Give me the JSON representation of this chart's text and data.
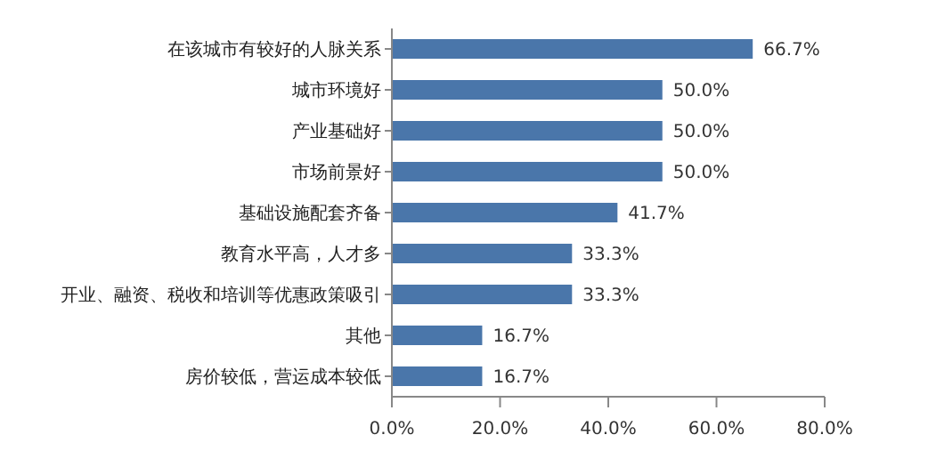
{
  "chart_data": {
    "type": "bar",
    "orientation": "horizontal",
    "categories": [
      "在该城市有较好的人脉关系",
      "城市环境好",
      "产业基础好",
      "市场前景好",
      "基础设施配套齐备",
      "教育水平高，人才多",
      "开业、融资、税收和培训等优惠政策吸引",
      "其他",
      "房价较低，营运成本较低"
    ],
    "values": [
      66.7,
      50.0,
      50.0,
      50.0,
      41.7,
      33.3,
      33.3,
      16.7,
      16.7
    ],
    "value_labels": [
      "66.7%",
      "50.0%",
      "50.0%",
      "50.0%",
      "41.7%",
      "33.3%",
      "33.3%",
      "16.7%",
      "16.7%"
    ],
    "color": "#4a76aa",
    "xlim": [
      0,
      80
    ],
    "xticks": [
      {
        "value": 0,
        "label": "0.0%"
      },
      {
        "value": 20,
        "label": "20.0%"
      },
      {
        "value": 40,
        "label": "40.0%"
      },
      {
        "value": 60,
        "label": "60.0%"
      },
      {
        "value": 80,
        "label": "80.0%"
      }
    ],
    "grid": false,
    "legend": false
  }
}
